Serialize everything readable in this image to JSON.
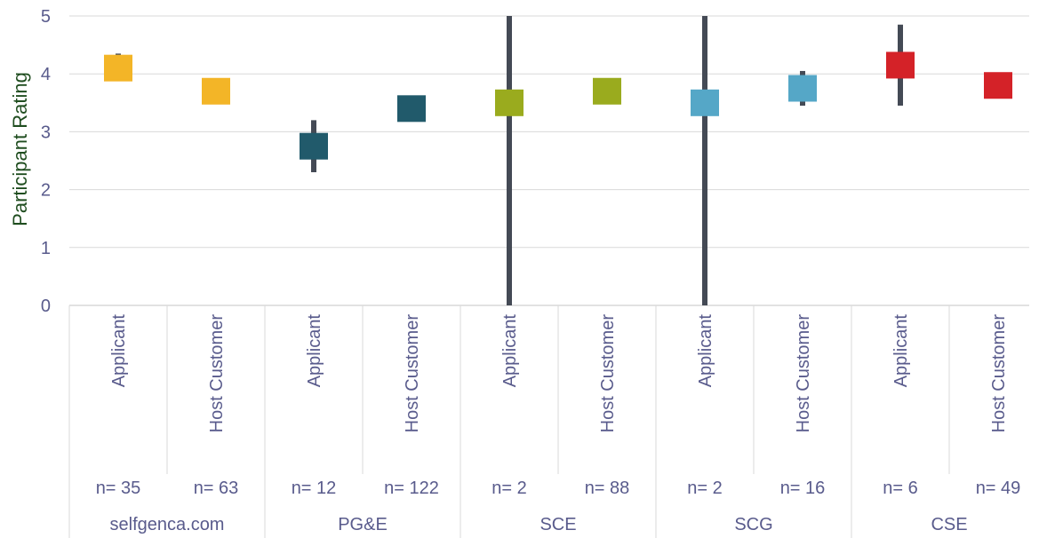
{
  "chart_data": {
    "type": "scatter",
    "ylabel": "Participant Rating",
    "ylim": [
      0,
      5
    ],
    "yticks": [
      "0",
      "1",
      "2",
      "3",
      "4",
      "5"
    ],
    "groups": [
      {
        "name": "selfgenca.com",
        "color": "#f3b527",
        "items": [
          {
            "category": "Applicant",
            "n": "n= 35",
            "value": 4.1,
            "err_low": 3.9,
            "err_high": 4.35
          },
          {
            "category": "Host Customer",
            "n": "n= 63",
            "value": 3.7,
            "err_low": 3.7,
            "err_high": 3.7
          }
        ]
      },
      {
        "name": "PG&E",
        "color": "#215a6b",
        "items": [
          {
            "category": "Applicant",
            "n": "n= 12",
            "value": 2.75,
            "err_low": 2.3,
            "err_high": 3.2
          },
          {
            "category": "Host Customer",
            "n": "n= 122",
            "value": 3.4,
            "err_low": 3.4,
            "err_high": 3.4
          }
        ]
      },
      {
        "name": "SCE",
        "color": "#9aab1e",
        "items": [
          {
            "category": "Applicant",
            "n": "n= 2",
            "value": 3.5,
            "err_low": 0,
            "err_high": 5
          },
          {
            "category": "Host Customer",
            "n": "n= 88",
            "value": 3.7,
            "err_low": 3.7,
            "err_high": 3.7
          }
        ]
      },
      {
        "name": "SCG",
        "color": "#55a7c7",
        "items": [
          {
            "category": "Applicant",
            "n": "n= 2",
            "value": 3.5,
            "err_low": 0,
            "err_high": 5
          },
          {
            "category": "Host Customer",
            "n": "n= 16",
            "value": 3.75,
            "err_low": 3.45,
            "err_high": 4.05
          }
        ]
      },
      {
        "name": "CSE",
        "color": "#d42228",
        "items": [
          {
            "category": "Applicant",
            "n": "n= 6",
            "value": 4.15,
            "err_low": 3.45,
            "err_high": 4.85
          },
          {
            "category": "Host Customer",
            "n": "n= 49",
            "value": 3.8,
            "err_low": 3.8,
            "err_high": 3.8
          }
        ]
      }
    ],
    "error_bar_color": "#444a55",
    "gridlines": true
  }
}
